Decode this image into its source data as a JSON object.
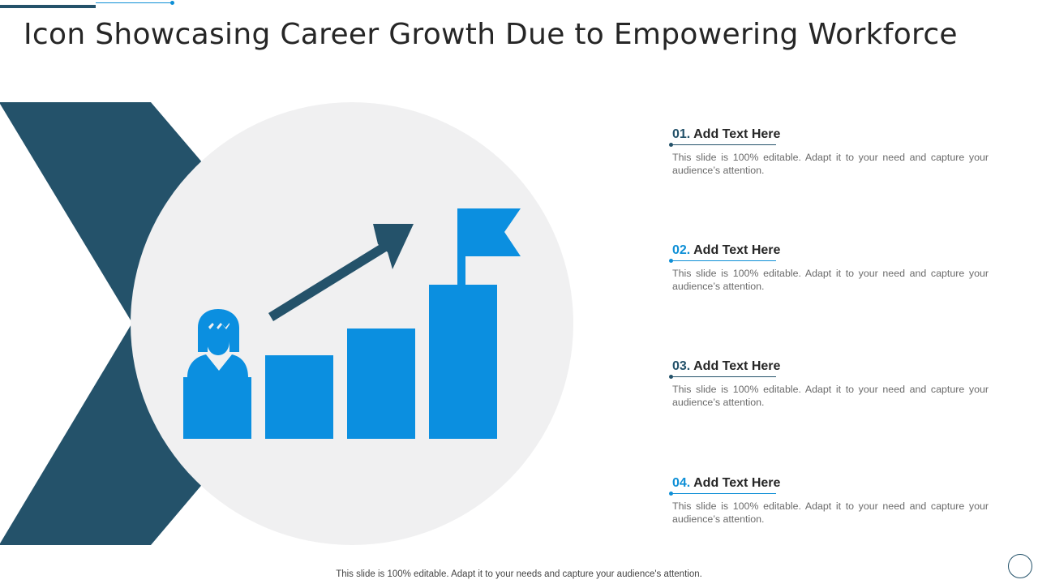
{
  "title": "Icon Showcasing Career Growth Due to Empowering Workforce",
  "items": [
    {
      "number": "01.",
      "heading": "Add  Text Here",
      "body": "This slide is 100% editable. Adapt it to your need and capture your audience’s attention."
    },
    {
      "number": "02.",
      "heading": "Add  Text Here",
      "body": "This slide is 100% editable. Adapt it to your need and capture your audience’s attention."
    },
    {
      "number": "03.",
      "heading": "Add  Text Here",
      "body": "This slide is 100% editable. Adapt it to your need and capture your audience’s attention."
    },
    {
      "number": "04.",
      "heading": "Add  Text Here",
      "body": "This slide is 100% editable. Adapt it to your need and capture your audience’s attention."
    }
  ],
  "footer": "This slide is 100% editable. Adapt it to your needs and capture your audience's attention.",
  "colors": {
    "dark_teal": "#24526a",
    "bright_blue": "#0b8fe0",
    "circle_gray": "#f0f0f1",
    "text_dark": "#262626",
    "text_gray": "#6b6b6b"
  },
  "icons": [
    "person-icon",
    "growth-arrow-icon",
    "flag-icon",
    "bar-chart-icon"
  ]
}
